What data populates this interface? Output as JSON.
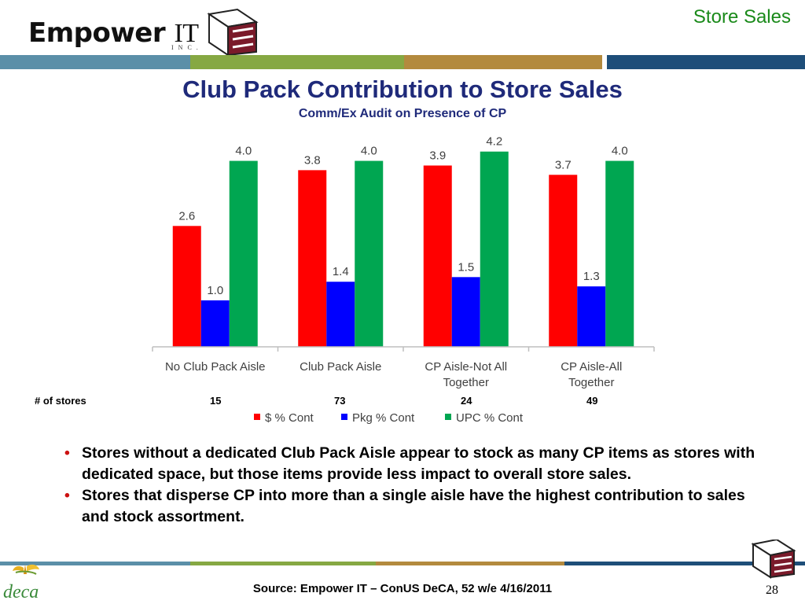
{
  "header": {
    "section_title": "Store Sales",
    "brand": {
      "name_part1": "Empower",
      "name_part2": "IT",
      "inc": "INC."
    }
  },
  "colors": {
    "stripe_top": [
      "#5b8fa8",
      "#86a843",
      "#b38a3e",
      "#1e4e79"
    ],
    "title": "#1f2a7a",
    "section_title": "#1a8a1a"
  },
  "main_title": "Club Pack Contribution to Store Sales",
  "subtitle": "Comm/Ex Audit on Presence of CP",
  "chart_data": {
    "type": "bar",
    "categories": [
      [
        "No Club Pack Aisle"
      ],
      [
        "Club Pack Aisle"
      ],
      [
        "CP Aisle-Not All",
        "Together"
      ],
      [
        "CP Aisle-All",
        "Together"
      ]
    ],
    "series": [
      {
        "name": "$ % Cont",
        "color": "#ff0000",
        "values": [
          2.6,
          3.8,
          3.9,
          3.7
        ],
        "labels": [
          "2.6",
          "3.8",
          "3.9",
          "3.7"
        ]
      },
      {
        "name": "Pkg % Cont",
        "color": "#0000ff",
        "values": [
          1.0,
          1.4,
          1.5,
          1.3
        ],
        "labels": [
          "1.0",
          "1.4",
          "1.5",
          "1.3"
        ]
      },
      {
        "name": "UPC % Cont",
        "color": "#00a651",
        "values": [
          4.0,
          4.0,
          4.2,
          4.0
        ],
        "labels": [
          "4.0",
          "4.0",
          "4.2",
          "4.0"
        ]
      }
    ],
    "ylim": [
      0,
      4.5
    ],
    "grid": false,
    "legend_position": "bottom"
  },
  "stores": {
    "label": "# of stores",
    "values": [
      "15",
      "73",
      "24",
      "49"
    ]
  },
  "bullets": [
    "Stores without a dedicated Club Pack Aisle appear to stock as many CP items as stores with dedicated space, but those items provide less impact to overall store sales.",
    "Stores that disperse CP into more than a single aisle have the highest contribution to sales and stock assortment."
  ],
  "footer": {
    "source": "Source:  Empower IT – ConUS DeCA, 52 w/e 4/16/2011",
    "page_number": "28",
    "deca_logo_text": "deca"
  }
}
